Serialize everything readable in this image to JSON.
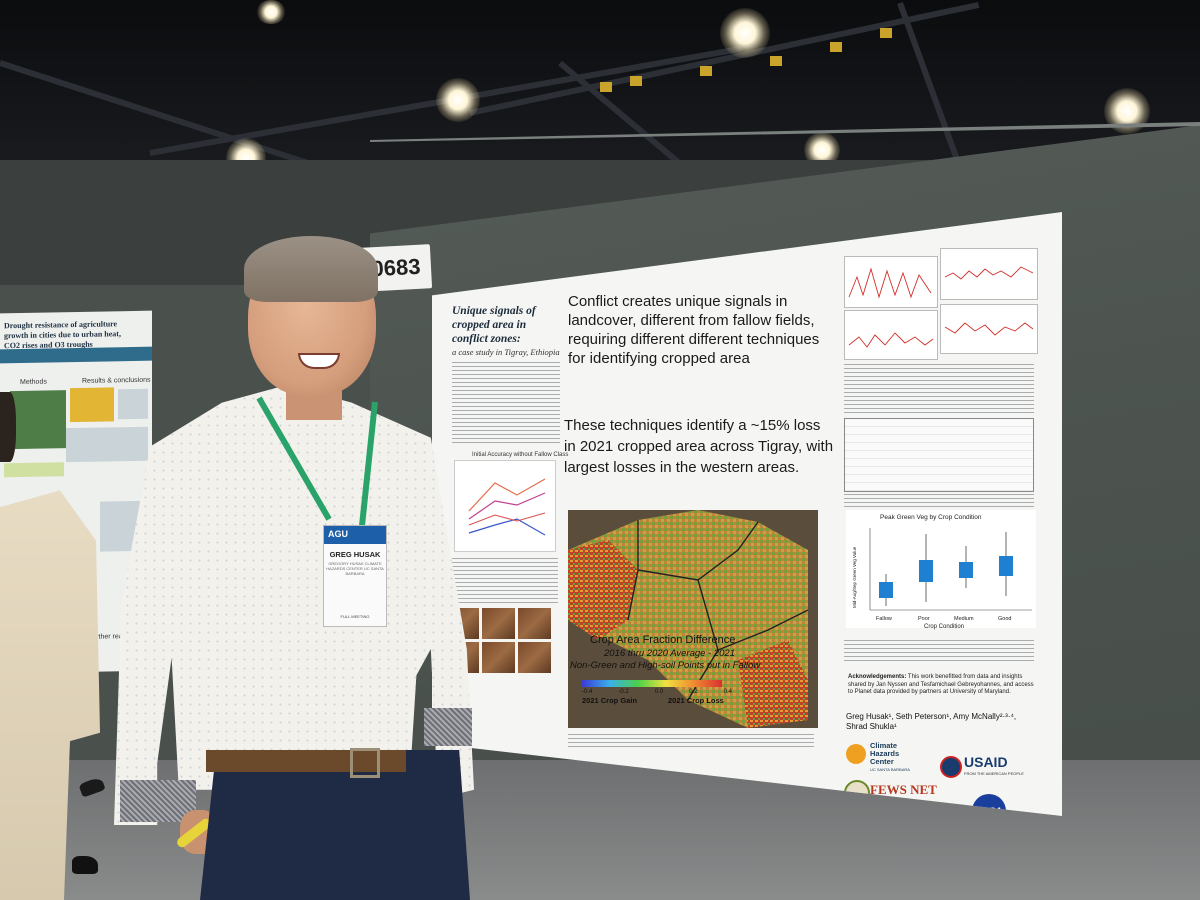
{
  "scene": {
    "board_number": "0683"
  },
  "left_poster": {
    "title": "Drought resistance of agriculture growth in cities due to urban heat, CO2 rises and O3 troughs",
    "section_methods": "Methods",
    "section_results": "Results & conclusions",
    "further": "Further reading"
  },
  "poster": {
    "title": "Unique signals of cropped area in conflict zones:",
    "subtitle": "a case study in Tigray, Ethiopia",
    "headline": "Conflict creates unique signals in landcover, different from fallow fields, requiring different different techniques for identifying cropped area",
    "finding": "These techniques identify a ~15% loss in 2021 cropped area across Tigray, with largest losses in the western areas.",
    "mini_chart_title": "Initial Accuracy without Fallow Class",
    "map": {
      "title": "Crop Area Fraction Difference",
      "period": "2016 thru 2020 Average - 2021",
      "note": "Non-Green and High-soil Points put in Fallow",
      "ticks": [
        "-0.4",
        "-0.2",
        "0.0",
        "0.2",
        "0.4"
      ],
      "left_label": "2021 Crop Gain",
      "right_label": "2021 Crop Loss"
    },
    "boxplot": {
      "title": "Peak Green Veg by Crop Condition",
      "xlabel": "Crop Condition",
      "ylabel": "Mid-Aug/Sep Green Veg Value",
      "categories": [
        "Fallow",
        "Poor",
        "Medium",
        "Good"
      ]
    },
    "acknowledgements_heading": "Acknowledgements:",
    "acknowledgements": "This work benefitted from data and insights shared by Jan Nyssen and Tesfamichael Gebreyohannes, and access to Planet data provided by partners at University of Maryland.",
    "authors": "Greg Husak¹, Seth Peterson¹, Amy McNally²·³·⁴, Shrad Shukla¹",
    "logos": {
      "chc_line1": "Climate",
      "chc_line2": "Hazards",
      "chc_line3": "Center",
      "chc_sub": "UC SANTA BARBARA",
      "usaid": "USAID",
      "usaid_sub": "FROM THE AMERICAN PEOPLE",
      "fews": "FEWS NET",
      "nasa": "NASA"
    }
  },
  "badge": {
    "event": "AGU",
    "name": "GREG HUSAK",
    "affiliation": "GREGORY HUSAK CLIMATE HAZARDS CENTER UC SANTA BARBARA",
    "type": "FULL MEETING"
  },
  "colors": {
    "wall": "#4d5450",
    "poster": "#f5f6f3",
    "shirt": "#f2f1ec",
    "lanyard": "#2aa36a",
    "boxplot_fill": "#1f7fd1"
  }
}
